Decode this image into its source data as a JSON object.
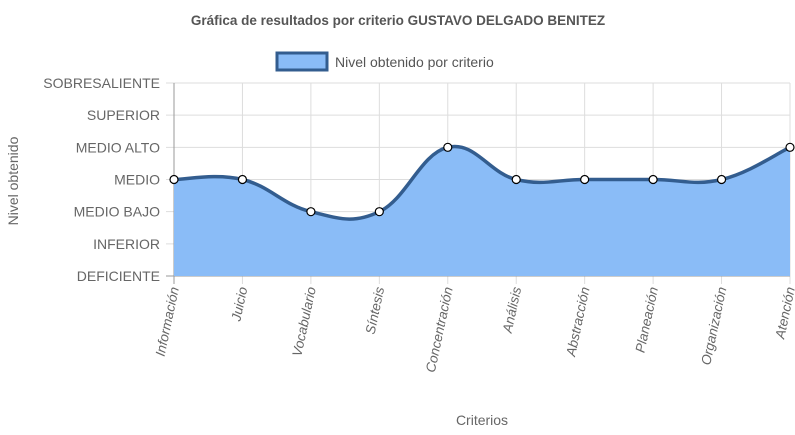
{
  "chart_data": {
    "type": "area",
    "title": "Gráfica de resultados por criterio GUSTAVO DELGADO BENITEZ",
    "xlabel": "Criterios",
    "ylabel": "Nivel obtenido",
    "categories": [
      "Información",
      "Juicio",
      "Vocabulario",
      "Síntesis",
      "Concentración",
      "Análisis",
      "Abstracción",
      "Planeación",
      "Organización",
      "Atención"
    ],
    "y_levels": [
      "DEFICIENTE",
      "INFERIOR",
      "MEDIO BAJO",
      "MEDIO",
      "MEDIO ALTO",
      "SUPERIOR",
      "SOBRESALIENTE"
    ],
    "series": [
      {
        "name": "Nivel obtenido por criterio",
        "values": [
          3,
          3,
          2,
          2,
          4,
          3,
          3,
          3,
          3,
          4
        ]
      }
    ],
    "ylim": [
      0,
      6
    ],
    "grid": true,
    "legend": "top-center",
    "colors": {
      "fill": "#8abcf7",
      "line": "#335d8f",
      "point_fill": "#ffffff",
      "point_stroke": "#000000",
      "grid": "#dddddd"
    }
  }
}
